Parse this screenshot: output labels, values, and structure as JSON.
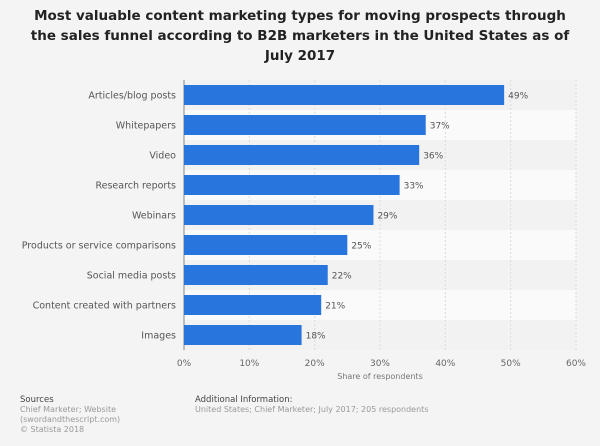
{
  "chart_data": {
    "type": "bar",
    "orientation": "horizontal",
    "title": "Most valuable content marketing types for moving prospects through the sales funnel according to B2B marketers in the United States as of July 2017",
    "categories": [
      "Articles/blog posts",
      "Whitepapers",
      "Video",
      "Research reports",
      "Webinars",
      "Products or service comparisons",
      "Social media posts",
      "Content created with partners",
      "Images"
    ],
    "values": [
      49,
      37,
      36,
      33,
      29,
      25,
      22,
      21,
      18
    ],
    "data_labels": [
      "49%",
      "37%",
      "36%",
      "33%",
      "29%",
      "25%",
      "22%",
      "21%",
      "18%"
    ],
    "xlabel": "Share of respondents",
    "ylabel": "",
    "xlim": [
      0,
      60
    ],
    "xticks": [
      "0%",
      "10%",
      "20%",
      "30%",
      "40%",
      "50%",
      "60%"
    ],
    "grid": true,
    "bar_color": "#2876dd"
  },
  "footer": {
    "sources_heading": "Sources",
    "sources_lines": [
      "Chief Marketer; Website",
      "(swordandthescript.com)",
      "© Statista 2018"
    ],
    "additional_heading": "Additional Information:",
    "additional_text": "United States; Chief Marketer; July 2017; 205 respondents"
  }
}
